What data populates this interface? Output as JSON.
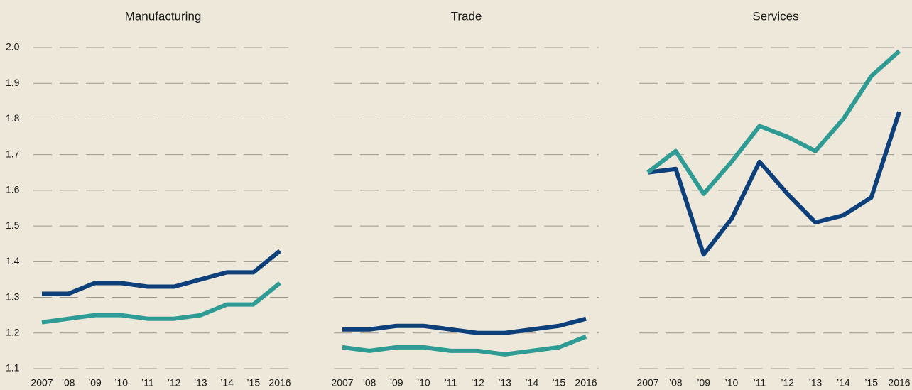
{
  "chart_data": [
    {
      "type": "line",
      "title": "Manufacturing",
      "categories": [
        "2007",
        "’08",
        "’09",
        "’10",
        "’11",
        "’12",
        "’13",
        "’14",
        "’15",
        "2016"
      ],
      "series": [
        {
          "color": "#0d3f7a",
          "values": [
            1.31,
            1.31,
            1.34,
            1.34,
            1.33,
            1.33,
            1.35,
            1.37,
            1.37,
            1.43
          ]
        },
        {
          "color": "#2e9b94",
          "values": [
            1.23,
            1.24,
            1.25,
            1.25,
            1.24,
            1.24,
            1.25,
            1.28,
            1.28,
            1.34
          ]
        }
      ],
      "ylim": [
        1.1,
        2.0
      ],
      "yticks": [
        1.1,
        1.2,
        1.3,
        1.4,
        1.5,
        1.6,
        1.7,
        1.8,
        1.9,
        {
          "value": 2.0,
          "label": "2.0"
        }
      ],
      "grid": true
    },
    {
      "type": "line",
      "title": "Trade",
      "categories": [
        "2007",
        "’08",
        "’09",
        "’10",
        "’11",
        "’12",
        "’13",
        "’14",
        "’15",
        "2016"
      ],
      "series": [
        {
          "color": "#0d3f7a",
          "values": [
            1.21,
            1.21,
            1.22,
            1.22,
            1.21,
            1.2,
            1.2,
            1.21,
            1.22,
            1.24
          ]
        },
        {
          "color": "#2e9b94",
          "values": [
            1.16,
            1.15,
            1.16,
            1.16,
            1.15,
            1.15,
            1.14,
            1.15,
            1.16,
            1.19
          ]
        }
      ],
      "ylim": [
        1.1,
        2.0
      ],
      "grid": true
    },
    {
      "type": "line",
      "title": "Services",
      "categories": [
        "2007",
        "’08",
        "’09",
        "’10",
        "’11",
        "’12",
        "’13",
        "’14",
        "’15",
        "2016"
      ],
      "series": [
        {
          "color": "#0d3f7a",
          "values": [
            1.65,
            1.66,
            1.42,
            1.52,
            1.68,
            1.59,
            1.51,
            1.53,
            1.58,
            1.82
          ]
        },
        {
          "color": "#2e9b94",
          "values": [
            1.65,
            1.71,
            1.59,
            1.68,
            1.78,
            1.75,
            1.71,
            1.8,
            1.92,
            1.99
          ]
        }
      ],
      "ylim": [
        1.1,
        2.0
      ],
      "grid": true
    }
  ]
}
